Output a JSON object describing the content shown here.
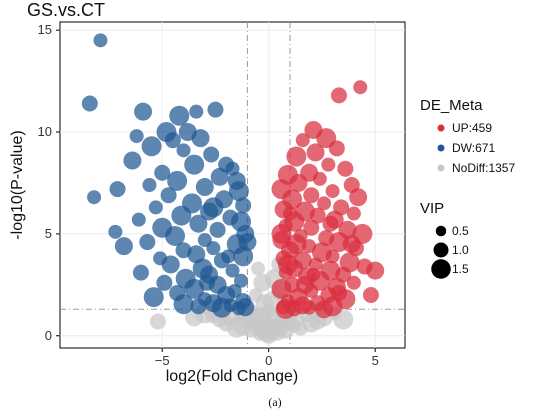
{
  "chart_data": {
    "type": "scatter",
    "title": "GS.vs.CT",
    "xlabel": "log2(Fold Change)",
    "ylabel": "-log10(P-value)",
    "xlim": [
      -9.8,
      6.4
    ],
    "ylim": [
      -0.6,
      15.4
    ],
    "x_ticks": [
      -5,
      0,
      5
    ],
    "y_ticks": [
      0,
      5,
      10,
      15
    ],
    "grid": true,
    "fold_change_thresholds": [
      -1,
      1
    ],
    "p_value_threshold": 1.3,
    "legend": {
      "title": "DE_Meta",
      "placement": "right",
      "entries": [
        {
          "label": "UP:459",
          "color": "#d92e3f"
        },
        {
          "label": "DW:671",
          "color": "#1f5893"
        },
        {
          "label": "NoDiff:1357",
          "color": "#c8c8c8"
        }
      ]
    },
    "size_legend": {
      "title": "VIP",
      "entries": [
        {
          "label": "0.5",
          "vip": 0.5
        },
        {
          "label": "1.0",
          "vip": 1.0
        },
        {
          "label": "1.5",
          "vip": 1.5
        }
      ]
    },
    "series": [
      {
        "name": "UP:459",
        "color": "#d92e3f",
        "points": [
          [
            4.3,
            12.2
          ],
          [
            3.3,
            11.8
          ],
          [
            2.1,
            10.1
          ],
          [
            2.7,
            9.7
          ],
          [
            1.6,
            9.6
          ],
          [
            3.2,
            9.2
          ],
          [
            2.2,
            9.0
          ],
          [
            1.3,
            8.8
          ],
          [
            2.8,
            8.4
          ],
          [
            3.6,
            8.2
          ],
          [
            1.9,
            8.0
          ],
          [
            0.9,
            7.9
          ],
          [
            2.4,
            7.7
          ],
          [
            3.9,
            7.4
          ],
          [
            1.4,
            7.5
          ],
          [
            0.6,
            7.2
          ],
          [
            3.0,
            7.1
          ],
          [
            2.0,
            6.9
          ],
          [
            4.2,
            6.8
          ],
          [
            1.1,
            6.7
          ],
          [
            2.6,
            6.5
          ],
          [
            3.4,
            6.3
          ],
          [
            0.7,
            6.2
          ],
          [
            1.7,
            6.1
          ],
          [
            4.0,
            6.0
          ],
          [
            2.3,
            5.9
          ],
          [
            3.1,
            5.7
          ],
          [
            1.2,
            5.6
          ],
          [
            0.8,
            5.4
          ],
          [
            2.0,
            5.3
          ],
          [
            3.7,
            5.2
          ],
          [
            4.4,
            5.0
          ],
          [
            1.5,
            4.9
          ],
          [
            2.7,
            4.8
          ],
          [
            0.6,
            4.7
          ],
          [
            3.3,
            4.6
          ],
          [
            1.9,
            4.4
          ],
          [
            4.1,
            4.3
          ],
          [
            1.0,
            4.2
          ],
          [
            2.5,
            4.1
          ],
          [
            3.0,
            3.9
          ],
          [
            0.7,
            3.8
          ],
          [
            1.6,
            3.7
          ],
          [
            3.8,
            3.6
          ],
          [
            2.2,
            3.5
          ],
          [
            4.5,
            3.4
          ],
          [
            1.2,
            3.3
          ],
          [
            2.9,
            3.2
          ],
          [
            0.8,
            3.1
          ],
          [
            3.5,
            3.0
          ],
          [
            1.8,
            2.9
          ],
          [
            2.4,
            2.7
          ],
          [
            4.0,
            2.6
          ],
          [
            1.1,
            2.5
          ],
          [
            3.2,
            2.4
          ],
          [
            0.6,
            2.3
          ],
          [
            2.0,
            2.2
          ],
          [
            2.8,
            2.0
          ],
          [
            1.4,
            1.9
          ],
          [
            3.6,
            1.8
          ],
          [
            0.9,
            1.7
          ],
          [
            2.3,
            1.6
          ],
          [
            1.6,
            1.5
          ],
          [
            3.0,
            1.45
          ],
          [
            0.7,
            1.4
          ],
          [
            1.2,
            1.35
          ],
          [
            2.6,
            1.3
          ],
          [
            0.8,
            1.32
          ],
          [
            1.9,
            1.38
          ],
          [
            4.8,
            2.0
          ],
          [
            5.0,
            3.2
          ],
          [
            0.6,
            5.0
          ],
          [
            1.0,
            6.0
          ],
          [
            2.9,
            5.5
          ],
          [
            3.9,
            4.5
          ],
          [
            1.3,
            4.5
          ],
          [
            2.1,
            3.0
          ],
          [
            3.3,
            2.1
          ],
          [
            1.7,
            2.5
          ],
          [
            0.9,
            3.5
          ]
        ]
      },
      {
        "name": "DW:671",
        "color": "#1f5893",
        "points": [
          [
            -7.9,
            14.5
          ],
          [
            -8.4,
            11.4
          ],
          [
            -5.9,
            11.0
          ],
          [
            -4.2,
            10.8
          ],
          [
            -3.4,
            11.0
          ],
          [
            -2.5,
            11.1
          ],
          [
            -3.8,
            10.0
          ],
          [
            -4.8,
            10.0
          ],
          [
            -6.2,
            9.8
          ],
          [
            -4.5,
            9.6
          ],
          [
            -3.2,
            9.7
          ],
          [
            -5.5,
            9.3
          ],
          [
            -4.0,
            9.1
          ],
          [
            -2.7,
            8.9
          ],
          [
            -6.4,
            8.6
          ],
          [
            -3.5,
            8.4
          ],
          [
            -1.7,
            8.2
          ],
          [
            -5.0,
            8.0
          ],
          [
            -2.3,
            7.8
          ],
          [
            -4.3,
            7.6
          ],
          [
            -5.6,
            7.4
          ],
          [
            -7.1,
            7.2
          ],
          [
            -3.0,
            7.3
          ],
          [
            -1.4,
            7.1
          ],
          [
            -8.2,
            6.8
          ],
          [
            -4.7,
            6.9
          ],
          [
            -2.1,
            6.7
          ],
          [
            -3.6,
            6.5
          ],
          [
            -5.3,
            6.3
          ],
          [
            -1.2,
            6.4
          ],
          [
            -2.8,
            6.1
          ],
          [
            -4.1,
            5.9
          ],
          [
            -6.1,
            5.7
          ],
          [
            -1.8,
            5.8
          ],
          [
            -3.3,
            5.5
          ],
          [
            -5.0,
            5.3
          ],
          [
            -7.2,
            5.1
          ],
          [
            -2.4,
            5.2
          ],
          [
            -1.1,
            5.0
          ],
          [
            -4.4,
            4.9
          ],
          [
            -3.0,
            4.7
          ],
          [
            -5.7,
            4.6
          ],
          [
            -6.8,
            4.4
          ],
          [
            -1.5,
            4.5
          ],
          [
            -2.6,
            4.3
          ],
          [
            -4.0,
            4.2
          ],
          [
            -3.4,
            4.0
          ],
          [
            -1.2,
            3.9
          ],
          [
            -5.1,
            3.8
          ],
          [
            -2.2,
            3.7
          ],
          [
            -4.6,
            3.5
          ],
          [
            -3.1,
            3.3
          ],
          [
            -1.7,
            3.2
          ],
          [
            -6.0,
            3.1
          ],
          [
            -2.8,
            3.0
          ],
          [
            -3.9,
            2.8
          ],
          [
            -1.3,
            2.7
          ],
          [
            -4.9,
            2.6
          ],
          [
            -2.4,
            2.5
          ],
          [
            -3.5,
            2.3
          ],
          [
            -1.6,
            2.2
          ],
          [
            -4.3,
            2.1
          ],
          [
            -2.0,
            2.0
          ],
          [
            -5.4,
            1.9
          ],
          [
            -3.0,
            1.8
          ],
          [
            -1.2,
            1.7
          ],
          [
            -2.6,
            1.6
          ],
          [
            -4.0,
            1.55
          ],
          [
            -1.8,
            1.5
          ],
          [
            -3.3,
            1.45
          ],
          [
            -1.1,
            1.4
          ],
          [
            -2.2,
            1.38
          ],
          [
            -1.4,
            1.35
          ],
          [
            -2.0,
            8.4
          ],
          [
            -1.5,
            7.6
          ],
          [
            -2.6,
            6.3
          ],
          [
            -1.9,
            3.9
          ],
          [
            -2.9,
            2.6
          ],
          [
            -1.0,
            4.6
          ],
          [
            -1.3,
            5.6
          ]
        ]
      },
      {
        "name": "NoDiff:1357",
        "color": "#c8c8c8",
        "points": [
          [
            0.0,
            1.2
          ],
          [
            -0.3,
            1.0
          ],
          [
            0.3,
            0.9
          ],
          [
            -0.6,
            0.8
          ],
          [
            0.6,
            0.8
          ],
          [
            -0.9,
            0.7
          ],
          [
            0.9,
            0.7
          ],
          [
            -0.2,
            0.6
          ],
          [
            0.2,
            0.5
          ],
          [
            -0.5,
            0.4
          ],
          [
            0.5,
            0.4
          ],
          [
            -1.2,
            0.5
          ],
          [
            1.2,
            0.5
          ],
          [
            -0.8,
            0.3
          ],
          [
            0.8,
            0.3
          ],
          [
            -0.1,
            0.2
          ],
          [
            0.1,
            0.1
          ],
          [
            -0.4,
            0.15
          ],
          [
            0.4,
            0.2
          ],
          [
            -1.5,
            0.4
          ],
          [
            1.5,
            0.35
          ],
          [
            -2.0,
            0.6
          ],
          [
            2.0,
            0.6
          ],
          [
            -1.8,
            1.0
          ],
          [
            1.8,
            1.0
          ],
          [
            -2.6,
            1.0
          ],
          [
            2.6,
            0.9
          ],
          [
            -3.0,
            1.1
          ],
          [
            3.1,
            1.1
          ],
          [
            -0.7,
            1.1
          ],
          [
            0.7,
            1.05
          ],
          [
            -1.1,
            1.15
          ],
          [
            1.1,
            1.15
          ],
          [
            -5.2,
            0.7
          ],
          [
            -3.5,
            0.9
          ],
          [
            3.5,
            0.8
          ],
          [
            -0.6,
            2.0
          ],
          [
            0.5,
            2.1
          ],
          [
            -0.3,
            2.6
          ],
          [
            0.3,
            2.8
          ],
          [
            -0.5,
            3.3
          ],
          [
            0.5,
            3.5
          ],
          [
            -0.2,
            1.6
          ],
          [
            0.2,
            1.7
          ],
          [
            -1.3,
            0.9
          ],
          [
            1.3,
            0.8
          ],
          [
            0.0,
            0.05
          ],
          [
            -0.2,
            0.35
          ],
          [
            0.25,
            0.3
          ],
          [
            -2.3,
            0.8
          ],
          [
            2.3,
            0.75
          ],
          [
            -2.6,
            1.3
          ],
          [
            2.4,
            1.25
          ]
        ]
      }
    ]
  },
  "caption": "(a)"
}
